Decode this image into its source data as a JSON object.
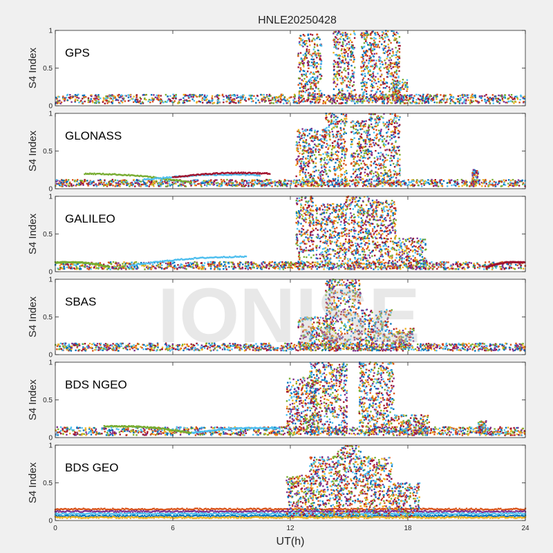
{
  "figure": {
    "title": "HNLE20250428",
    "xlabel": "UT(h)",
    "watermark": "IONISE"
  },
  "colors": {
    "series": [
      "#0072BD",
      "#D95319",
      "#EDB120",
      "#7E2F8E",
      "#77AC30",
      "#4DBEEE",
      "#A2142F"
    ],
    "axes_bg": "#ffffff",
    "figure_bg": "#f0f0f0"
  },
  "chart_data": [
    {
      "type": "scatter",
      "label": "GPS",
      "ylabel": "S4 Index",
      "xlim": [
        0,
        24
      ],
      "ylim": [
        0,
        1
      ],
      "xticks": [
        0,
        6,
        12,
        18,
        24
      ],
      "yticks": [
        0,
        0.5,
        1
      ],
      "baseline": [
        0.03,
        0.15
      ],
      "bursts": [
        {
          "x": [
            12.4,
            13.6
          ],
          "ymax": 0.95
        },
        {
          "x": [
            14.2,
            15.3
          ],
          "ymax": 1.0
        },
        {
          "x": [
            15.6,
            17.6
          ],
          "ymax": 1.0
        },
        {
          "x": [
            17.2,
            18.0
          ],
          "ymax": 0.35
        }
      ]
    },
    {
      "type": "scatter",
      "label": "GLONASS",
      "ylabel": "S4 Index",
      "xlim": [
        0,
        24
      ],
      "ylim": [
        0,
        1
      ],
      "xticks": [
        0,
        6,
        12,
        18,
        24
      ],
      "yticks": [
        0,
        0.5,
        1
      ],
      "baseline": [
        0.03,
        0.12
      ],
      "arcs": [
        {
          "x": [
            1.5,
            7.0
          ],
          "y": [
            0.2,
            0.08
          ]
        },
        {
          "x": [
            4.5,
            10.5
          ],
          "y": [
            0.12,
            0.18
          ]
        },
        {
          "x": [
            6.0,
            11.0
          ],
          "y": [
            0.15,
            0.2
          ]
        }
      ],
      "bursts": [
        {
          "x": [
            12.3,
            13.8
          ],
          "ymax": 0.8
        },
        {
          "x": [
            13.8,
            14.9
          ],
          "ymax": 1.0
        },
        {
          "x": [
            15.1,
            16.0
          ],
          "ymax": 0.9
        },
        {
          "x": [
            16.0,
            17.6
          ],
          "ymax": 1.0
        },
        {
          "x": [
            21.3,
            21.6
          ],
          "ymax": 0.25
        }
      ]
    },
    {
      "type": "scatter",
      "label": "GALILEO",
      "ylabel": "S4 Index",
      "xlim": [
        0,
        24
      ],
      "ylim": [
        0,
        1
      ],
      "xticks": [
        0,
        6,
        12,
        18,
        24
      ],
      "yticks": [
        0,
        0.5,
        1
      ],
      "baseline": [
        0.03,
        0.13
      ],
      "arcs": [
        {
          "x": [
            0.0,
            2.8
          ],
          "y": [
            0.12,
            0.06
          ]
        },
        {
          "x": [
            3.8,
            9.8
          ],
          "y": [
            0.08,
            0.2
          ]
        },
        {
          "x": [
            22.0,
            24.0
          ],
          "y": [
            0.06,
            0.12
          ]
        }
      ],
      "bursts": [
        {
          "x": [
            12.3,
            13.2
          ],
          "ymax": 1.0
        },
        {
          "x": [
            13.3,
            14.8
          ],
          "ymax": 0.9
        },
        {
          "x": [
            14.8,
            16.2
          ],
          "ymax": 1.0
        },
        {
          "x": [
            16.2,
            17.4
          ],
          "ymax": 0.95
        },
        {
          "x": [
            17.4,
            19.0
          ],
          "ymax": 0.45
        }
      ]
    },
    {
      "type": "scatter",
      "label": "SBAS",
      "ylabel": "S4 Index",
      "xlim": [
        0,
        24
      ],
      "ylim": [
        0,
        1
      ],
      "xticks": [
        0,
        6,
        12,
        18,
        24
      ],
      "yticks": [
        0,
        0.5,
        1
      ],
      "baseline": [
        0.05,
        0.15
      ],
      "bursts": [
        {
          "x": [
            12.4,
            14.2
          ],
          "ymax": 0.5
        },
        {
          "x": [
            13.8,
            15.6
          ],
          "ymax": 1.0
        },
        {
          "x": [
            15.6,
            17.2
          ],
          "ymax": 0.6
        },
        {
          "x": [
            17.2,
            18.3
          ],
          "ymax": 0.35
        }
      ]
    },
    {
      "type": "scatter",
      "label": "BDS NGEO",
      "ylabel": "S4 Index",
      "xlim": [
        0,
        24
      ],
      "ylim": [
        0,
        1
      ],
      "xticks": [
        0,
        6,
        12,
        18,
        24
      ],
      "yticks": [
        0,
        0.5,
        1
      ],
      "baseline": [
        0.03,
        0.14
      ],
      "arcs": [
        {
          "x": [
            2.5,
            7.0
          ],
          "y": [
            0.15,
            0.06
          ]
        },
        {
          "x": [
            7.0,
            11.5
          ],
          "y": [
            0.06,
            0.12
          ]
        }
      ],
      "bursts": [
        {
          "x": [
            11.8,
            13.4
          ],
          "ymax": 0.8
        },
        {
          "x": [
            13.0,
            14.9
          ],
          "ymax": 1.0
        },
        {
          "x": [
            15.5,
            17.3
          ],
          "ymax": 1.0
        },
        {
          "x": [
            17.3,
            19.2
          ],
          "ymax": 0.3
        },
        {
          "x": [
            21.6,
            22.0
          ],
          "ymax": 0.22
        }
      ]
    },
    {
      "type": "scatter",
      "label": "BDS GEO",
      "ylabel": "S4 Index",
      "xlim": [
        0,
        24
      ],
      "ylim": [
        0,
        1
      ],
      "xticks": [
        0,
        6,
        12,
        18,
        24
      ],
      "yticks": [
        0,
        0.5,
        1
      ],
      "bands": [
        0.15,
        0.12,
        0.09,
        0.06,
        0.04
      ],
      "bursts": [
        {
          "x": [
            11.8,
            13.2
          ],
          "ymax": 0.6
        },
        {
          "x": [
            13.0,
            14.4
          ],
          "ymax": 0.85
        },
        {
          "x": [
            14.4,
            15.6
          ],
          "ymax": 1.0
        },
        {
          "x": [
            15.6,
            17.2
          ],
          "ymax": 0.85
        },
        {
          "x": [
            17.2,
            18.6
          ],
          "ymax": 0.5
        }
      ]
    }
  ]
}
